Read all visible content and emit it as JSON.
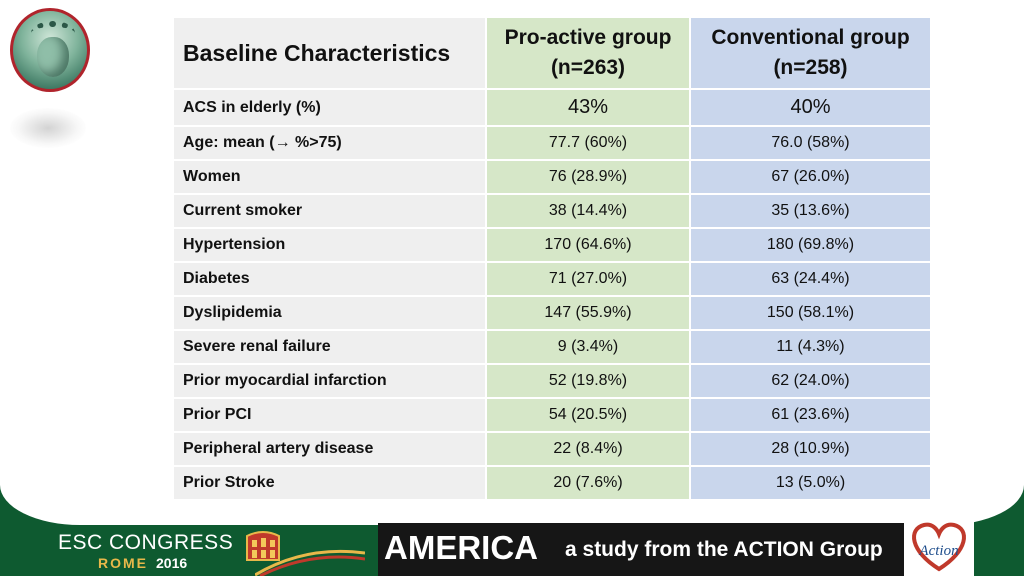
{
  "table": {
    "headers": {
      "characteristic": "Baseline Characteristics",
      "proactive_line1": "Pro-active group",
      "proactive_line2": "(n=263)",
      "conventional_line1": "Conventional group",
      "conventional_line2": "(n=258)"
    },
    "rows": [
      {
        "label": "ACS in elderly (%)",
        "proactive": "43%",
        "conventional": "40%"
      },
      {
        "label": "Age: mean (→ %>75)",
        "proactive": "77.7 (60%)",
        "conventional": "76.0 (58%)"
      },
      {
        "label": "Women",
        "proactive": "76 (28.9%)",
        "conventional": "67 (26.0%)"
      },
      {
        "label": "Current smoker",
        "proactive": "38 (14.4%)",
        "conventional": "35 (13.6%)"
      },
      {
        "label": "Hypertension",
        "proactive": "170 (64.6%)",
        "conventional": "180 (69.8%)"
      },
      {
        "label": "Diabetes",
        "proactive": "71 (27.0%)",
        "conventional": "63 (24.4%)"
      },
      {
        "label": "Dyslipidemia",
        "proactive": "147 (55.9%)",
        "conventional": "150 (58.1%)"
      },
      {
        "label": "Severe renal failure",
        "proactive": "9 (3.4%)",
        "conventional": "11 (4.3%)"
      },
      {
        "label": "Prior myocardial infarction",
        "proactive": "52 (19.8%)",
        "conventional": "62 (24.0%)"
      },
      {
        "label": "Prior PCI",
        "proactive": "54 (20.5%)",
        "conventional": "61 (23.6%)"
      },
      {
        "label": "Peripheral artery disease",
        "proactive": "22 (8.4%)",
        "conventional": "28 (10.9%)"
      },
      {
        "label": "Prior Stroke",
        "proactive": "20 (7.6%)",
        "conventional": "13 (5.0%)"
      }
    ]
  },
  "footer": {
    "congress": "ESC CONGRESS",
    "city": "ROME",
    "year": "2016",
    "study": "AMERICA",
    "tagline": "a study from the ACTION Group",
    "action_logo_text": "Action"
  },
  "colors": {
    "footer_green": "#0e5a30",
    "proactive_column": "#d6e7c8",
    "conventional_column": "#c9d6ec",
    "label_column": "#efefef",
    "logo_red": "#b0242c"
  }
}
